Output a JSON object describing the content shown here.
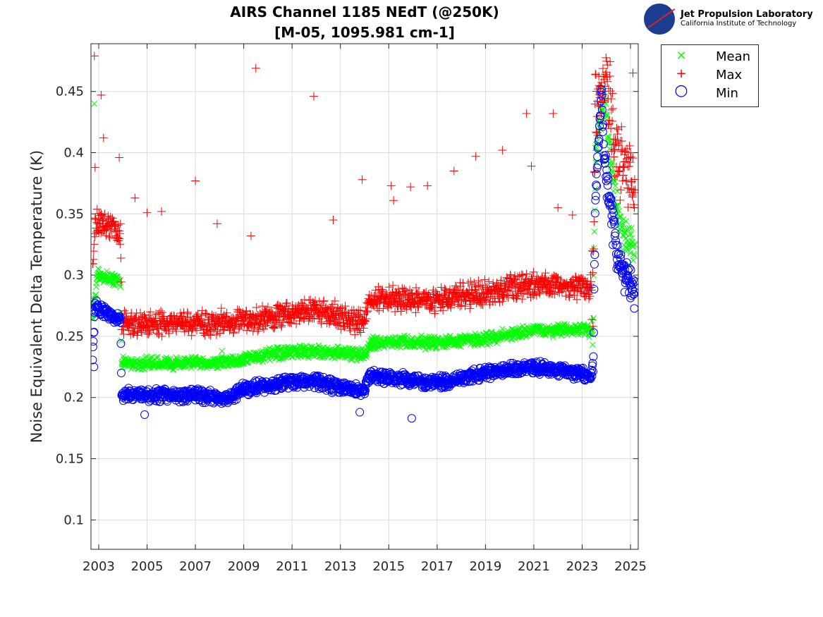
{
  "chart_data": {
    "type": "scatter",
    "title": "AIRS Channel 1185 NEdT (@250K)",
    "subtitle": "[M-05, 1095.981 cm-1]",
    "xlabel": "",
    "ylabel": "Noise Equivalent Delta Temperature (K)",
    "xlim": [
      2002.68,
      2025.32
    ],
    "ylim": [
      0.076,
      0.489
    ],
    "xticks": [
      "2003",
      "2005",
      "2007",
      "2009",
      "2011",
      "2013",
      "2015",
      "2017",
      "2019",
      "2021",
      "2023",
      "2025"
    ],
    "yticks": [
      "0.1",
      "0.15",
      "0.2",
      "0.25",
      "0.3",
      "0.35",
      "0.4",
      "0.45"
    ],
    "grid": true,
    "legend_position": "outside-top-right",
    "series": [
      {
        "name": "Mean",
        "marker": "x",
        "color": "#00ff00",
        "spread": 0.006,
        "trend": [
          [
            2002.75,
            0.265
          ],
          [
            2002.95,
            0.3
          ],
          [
            2003.9,
            0.295
          ],
          [
            2003.95,
            0.228
          ],
          [
            2007,
            0.228
          ],
          [
            2008.9,
            0.23
          ],
          [
            2009,
            0.232
          ],
          [
            2010.5,
            0.236
          ],
          [
            2012,
            0.238
          ],
          [
            2014,
            0.235
          ],
          [
            2014.3,
            0.245
          ],
          [
            2017,
            0.245
          ],
          [
            2019,
            0.248
          ],
          [
            2021,
            0.255
          ],
          [
            2023.45,
            0.255
          ],
          [
            2023.55,
            0.4
          ],
          [
            2023.9,
            0.45
          ],
          [
            2024.3,
            0.37
          ],
          [
            2024.7,
            0.33
          ],
          [
            2025.2,
            0.32
          ]
        ],
        "outliers": [
          [
            2002.82,
            0.44
          ],
          [
            2008.1,
            0.238
          ]
        ]
      },
      {
        "name": "Max",
        "marker": "+",
        "color": "#ff0000",
        "spread": 0.012,
        "trend": [
          [
            2002.75,
            0.3
          ],
          [
            2002.85,
            0.345
          ],
          [
            2003.9,
            0.335
          ],
          [
            2003.95,
            0.26
          ],
          [
            2007,
            0.26
          ],
          [
            2010,
            0.265
          ],
          [
            2012,
            0.272
          ],
          [
            2013.9,
            0.26
          ],
          [
            2014.2,
            0.28
          ],
          [
            2017,
            0.28
          ],
          [
            2019,
            0.285
          ],
          [
            2021,
            0.293
          ],
          [
            2023.45,
            0.29
          ],
          [
            2023.55,
            0.44
          ],
          [
            2024,
            0.47
          ],
          [
            2024.4,
            0.4
          ],
          [
            2025.2,
            0.37
          ]
        ],
        "outliers": [
          [
            2002.82,
            0.479
          ],
          [
            2003.1,
            0.447
          ],
          [
            2003.2,
            0.412
          ],
          [
            2002.85,
            0.388
          ],
          [
            2003.85,
            0.396
          ],
          [
            2004.5,
            0.363
          ],
          [
            2005.0,
            0.351
          ],
          [
            2005.6,
            0.352
          ],
          [
            2007.0,
            0.377
          ],
          [
            2007.9,
            0.342
          ],
          [
            2009.5,
            0.469
          ],
          [
            2009.3,
            0.332
          ],
          [
            2011.9,
            0.446
          ],
          [
            2012.7,
            0.345
          ],
          [
            2013.9,
            0.378
          ],
          [
            2015.1,
            0.373
          ],
          [
            2015.2,
            0.361
          ],
          [
            2015.9,
            0.372
          ],
          [
            2016.6,
            0.373
          ],
          [
            2017.7,
            0.385
          ],
          [
            2018.6,
            0.397
          ],
          [
            2019.7,
            0.402
          ],
          [
            2020.7,
            0.432
          ],
          [
            2020.9,
            0.389
          ],
          [
            2021.8,
            0.432
          ],
          [
            2022.0,
            0.355
          ],
          [
            2022.6,
            0.349
          ],
          [
            2025.1,
            0.465
          ]
        ]
      },
      {
        "name": "Min",
        "marker": "o",
        "color": "#0000ff",
        "spread": 0.006,
        "trend": [
          [
            2002.75,
            0.235
          ],
          [
            2002.85,
            0.275
          ],
          [
            2003.9,
            0.263
          ],
          [
            2003.95,
            0.202
          ],
          [
            2007,
            0.202
          ],
          [
            2008.5,
            0.2
          ],
          [
            2009,
            0.207
          ],
          [
            2011,
            0.213
          ],
          [
            2012,
            0.213
          ],
          [
            2013,
            0.208
          ],
          [
            2014,
            0.205
          ],
          [
            2014.2,
            0.218
          ],
          [
            2017,
            0.212
          ],
          [
            2019,
            0.22
          ],
          [
            2021,
            0.225
          ],
          [
            2023.45,
            0.218
          ],
          [
            2023.55,
            0.36
          ],
          [
            2023.8,
            0.44
          ],
          [
            2024.0,
            0.38
          ],
          [
            2024.4,
            0.32
          ],
          [
            2024.8,
            0.3
          ],
          [
            2025.2,
            0.285
          ]
        ],
        "outliers": [
          [
            2015.95,
            0.183
          ],
          [
            2013.8,
            0.188
          ],
          [
            2004.9,
            0.186
          ],
          [
            2002.8,
            0.225
          ]
        ]
      }
    ]
  },
  "logo": {
    "line1": "Jet Propulsion Laboratory",
    "line2": "California Institute of Technology",
    "badge": "NASA"
  }
}
